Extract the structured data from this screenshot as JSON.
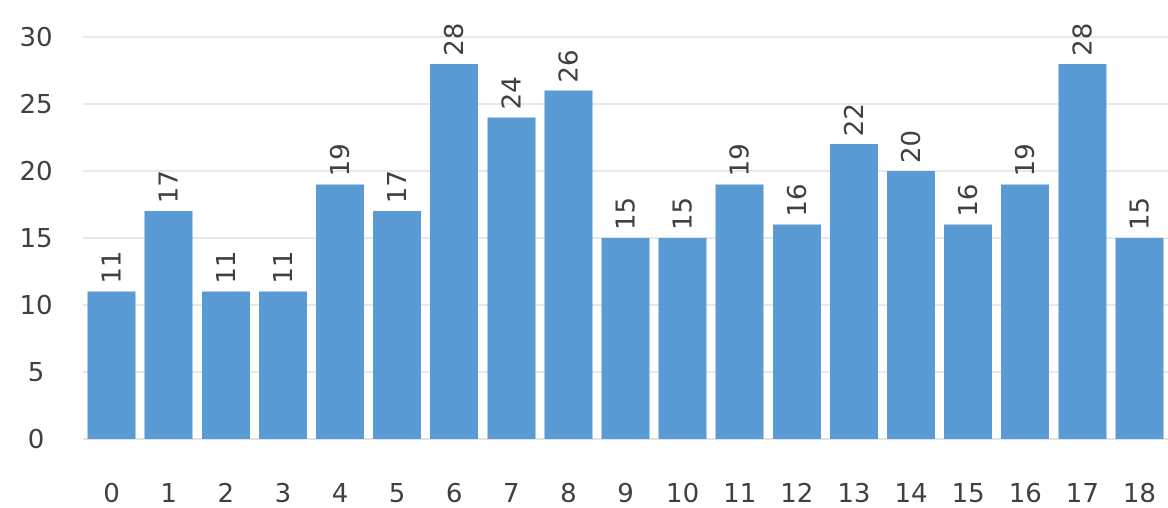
{
  "chart_data": {
    "type": "bar",
    "categories": [
      "0",
      "1",
      "2",
      "3",
      "4",
      "5",
      "6",
      "7",
      "8",
      "9",
      "10",
      "11",
      "12",
      "13",
      "14",
      "15",
      "16",
      "17",
      "18"
    ],
    "values": [
      11,
      17,
      11,
      11,
      19,
      17,
      28,
      24,
      26,
      15,
      15,
      19,
      16,
      22,
      20,
      16,
      19,
      28,
      15
    ],
    "ylim": [
      0,
      30
    ],
    "yticks": [
      0,
      5,
      10,
      15,
      20,
      25,
      30
    ],
    "grid": true,
    "legend": "none",
    "data_labels": "rotated-vertical",
    "bar_color": "#5b9bd5"
  }
}
